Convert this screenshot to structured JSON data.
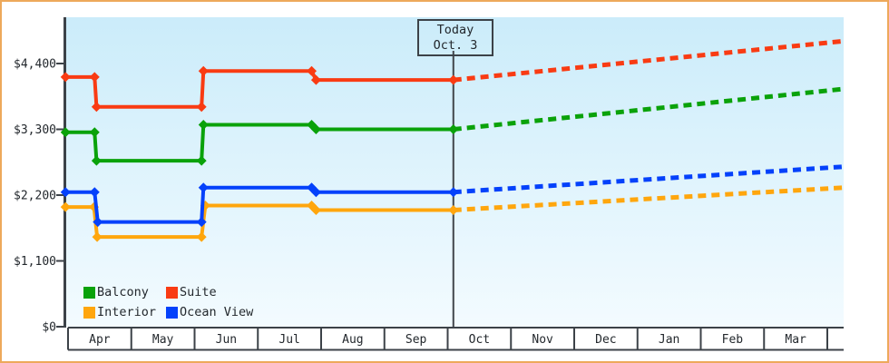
{
  "window": {
    "frame_border_color": "#eda95b",
    "plot_bg_top": "#cbecfa",
    "plot_bg_bottom": "#f3fbff",
    "axis_color": "#3c4248",
    "text_color": "#23282d"
  },
  "chart_data": {
    "type": "line",
    "title": "",
    "description": "Cabin price by month with stepped historical prices (solid) and projected prices (dashed) after today",
    "y_axis": {
      "min": 0,
      "max": 4400,
      "ticks": [
        {
          "label": "$0",
          "value": 0
        },
        {
          "label": "$1,100",
          "value": 1100
        },
        {
          "label": "$2,200",
          "value": 2200
        },
        {
          "label": "$3,300",
          "value": 3300
        },
        {
          "label": "$4,400",
          "value": 4400
        }
      ]
    },
    "x_axis": {
      "months": [
        "Apr",
        "May",
        "Jun",
        "Jul",
        "Aug",
        "Sep",
        "Oct",
        "Nov",
        "Dec",
        "Jan",
        "Feb",
        "Mar"
      ]
    },
    "today_marker": {
      "line1": "Today",
      "line2": "Oct. 3",
      "x_month": 6.09
    },
    "legend": {
      "position": "bottom-left",
      "items": [
        {
          "label": "Balcony",
          "color": "#0aa20a"
        },
        {
          "label": "Suite",
          "color": "#f93b13"
        },
        {
          "label": "Interior",
          "color": "#ffa60d"
        },
        {
          "label": "Ocean View",
          "color": "#0441fb"
        }
      ]
    },
    "series": [
      {
        "name": "Interior",
        "color": "#ffa60d",
        "solid_points": [
          [
            -0.04,
            2000
          ],
          [
            0.41,
            2000
          ],
          [
            0.46,
            1500
          ],
          [
            2.11,
            1500
          ],
          [
            2.17,
            2025
          ],
          [
            3.85,
            2025
          ],
          [
            3.92,
            1950
          ],
          [
            6.09,
            1950
          ]
        ],
        "projected_points": [
          [
            6.09,
            1950
          ],
          [
            12.26,
            2325
          ]
        ]
      },
      {
        "name": "Ocean View",
        "color": "#0441fb",
        "solid_points": [
          [
            -0.04,
            2250
          ],
          [
            0.42,
            2250
          ],
          [
            0.47,
            1750
          ],
          [
            2.11,
            1750
          ],
          [
            2.14,
            2325
          ],
          [
            3.85,
            2325
          ],
          [
            3.92,
            2250
          ],
          [
            6.09,
            2250
          ]
        ],
        "projected_points": [
          [
            6.09,
            2250
          ],
          [
            12.26,
            2675
          ]
        ]
      },
      {
        "name": "Balcony",
        "color": "#0aa20a",
        "solid_points": [
          [
            -0.04,
            3250
          ],
          [
            0.42,
            3250
          ],
          [
            0.45,
            2775
          ],
          [
            2.11,
            2775
          ],
          [
            2.14,
            3375
          ],
          [
            3.85,
            3375
          ],
          [
            3.92,
            3300
          ],
          [
            6.09,
            3300
          ]
        ],
        "projected_points": [
          [
            6.09,
            3300
          ],
          [
            12.26,
            3975
          ]
        ]
      },
      {
        "name": "Suite",
        "color": "#f93b13",
        "solid_points": [
          [
            -0.04,
            4175
          ],
          [
            0.42,
            4175
          ],
          [
            0.45,
            3675
          ],
          [
            2.11,
            3675
          ],
          [
            2.14,
            4275
          ],
          [
            3.85,
            4275
          ],
          [
            3.92,
            4125
          ],
          [
            6.09,
            4125
          ]
        ],
        "projected_points": [
          [
            6.09,
            4125
          ],
          [
            12.26,
            4775
          ]
        ]
      }
    ]
  }
}
